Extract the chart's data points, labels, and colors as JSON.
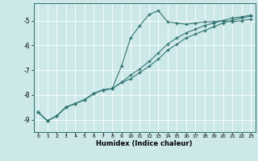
{
  "xlabel": "Humidex (Indice chaleur)",
  "bg_color": "#cce8e8",
  "line_color": "#2d7070",
  "grid_color": "#ffffff",
  "xlim": [
    -0.5,
    23.5
  ],
  "ylim": [
    -9.5,
    -4.3
  ],
  "xticks": [
    0,
    1,
    2,
    3,
    4,
    5,
    6,
    7,
    8,
    9,
    10,
    11,
    12,
    13,
    14,
    15,
    16,
    17,
    18,
    19,
    20,
    21,
    22,
    23
  ],
  "yticks": [
    -9,
    -8,
    -7,
    -6,
    -5
  ],
  "line1_x": [
    0,
    1,
    2,
    3,
    4,
    5,
    6,
    7,
    8,
    9,
    10,
    11,
    12,
    13,
    14,
    15,
    16,
    17,
    18,
    19,
    20,
    21,
    22,
    23
  ],
  "line1_y": [
    -8.7,
    -9.05,
    -8.85,
    -8.5,
    -8.35,
    -8.2,
    -7.95,
    -7.8,
    -7.75,
    -6.85,
    -5.7,
    -5.2,
    -4.75,
    -4.6,
    -5.05,
    -5.1,
    -5.15,
    -5.1,
    -5.05,
    -5.05,
    -5.0,
    -5.05,
    -5.0,
    -4.95
  ],
  "line2_x": [
    0,
    1,
    2,
    3,
    4,
    5,
    6,
    7,
    8,
    9,
    10,
    11,
    12,
    13,
    14,
    15,
    16,
    17,
    18,
    19,
    20,
    21,
    22,
    23
  ],
  "line2_y": [
    -8.7,
    -9.05,
    -8.85,
    -8.5,
    -8.35,
    -8.2,
    -7.95,
    -7.8,
    -7.75,
    -7.5,
    -7.35,
    -7.1,
    -6.85,
    -6.55,
    -6.2,
    -5.95,
    -5.7,
    -5.55,
    -5.4,
    -5.25,
    -5.1,
    -4.98,
    -4.9,
    -4.82
  ],
  "line3_x": [
    0,
    1,
    2,
    3,
    4,
    5,
    6,
    7,
    8,
    9,
    10,
    11,
    12,
    13,
    14,
    15,
    16,
    17,
    18,
    19,
    20,
    21,
    22,
    23
  ],
  "line3_y": [
    -8.7,
    -9.05,
    -8.85,
    -8.5,
    -8.35,
    -8.2,
    -7.95,
    -7.8,
    -7.75,
    -7.5,
    -7.2,
    -6.95,
    -6.65,
    -6.3,
    -5.95,
    -5.7,
    -5.5,
    -5.35,
    -5.2,
    -5.1,
    -5.0,
    -4.9,
    -4.85,
    -4.78
  ]
}
